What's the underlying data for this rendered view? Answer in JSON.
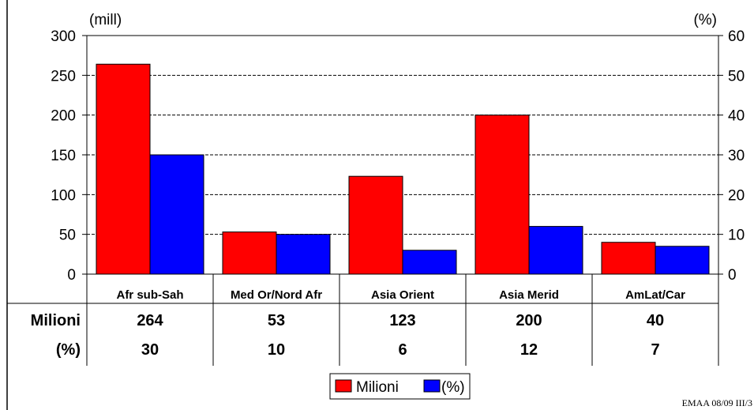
{
  "chart_data": {
    "type": "bar",
    "categories": [
      "Afr sub-Sah",
      "Med Or/Nord Afr",
      "Asia Orient",
      "Asia Merid",
      "AmLat/Car"
    ],
    "series": [
      {
        "name": "Milioni",
        "axis": "left",
        "color": "#ff0000",
        "values": [
          264,
          53,
          123,
          200,
          40
        ]
      },
      {
        "name": "(%)",
        "axis": "right",
        "color": "#0000ff",
        "values": [
          30,
          10,
          6,
          12,
          7
        ]
      }
    ],
    "left_axis": {
      "unit": "(mill)",
      "range": [
        0,
        300
      ],
      "ticks": [
        "0",
        "50",
        "100",
        "150",
        "200",
        "250",
        "300"
      ]
    },
    "right_axis": {
      "unit": "(%)",
      "range": [
        0,
        60
      ],
      "ticks": [
        "0",
        "10",
        "20",
        "30",
        "40",
        "50",
        "60"
      ]
    },
    "grid": "horizontal dashed",
    "legend_placement": "bottom-center",
    "table": {
      "rows": [
        {
          "label": "Milioni",
          "values": [
            "264",
            "53",
            "123",
            "200",
            "40"
          ]
        },
        {
          "label": "(%)",
          "values": [
            "30",
            "10",
            "6",
            "12",
            "7"
          ]
        }
      ]
    }
  },
  "footer": "EMAA 08/09   III/3"
}
